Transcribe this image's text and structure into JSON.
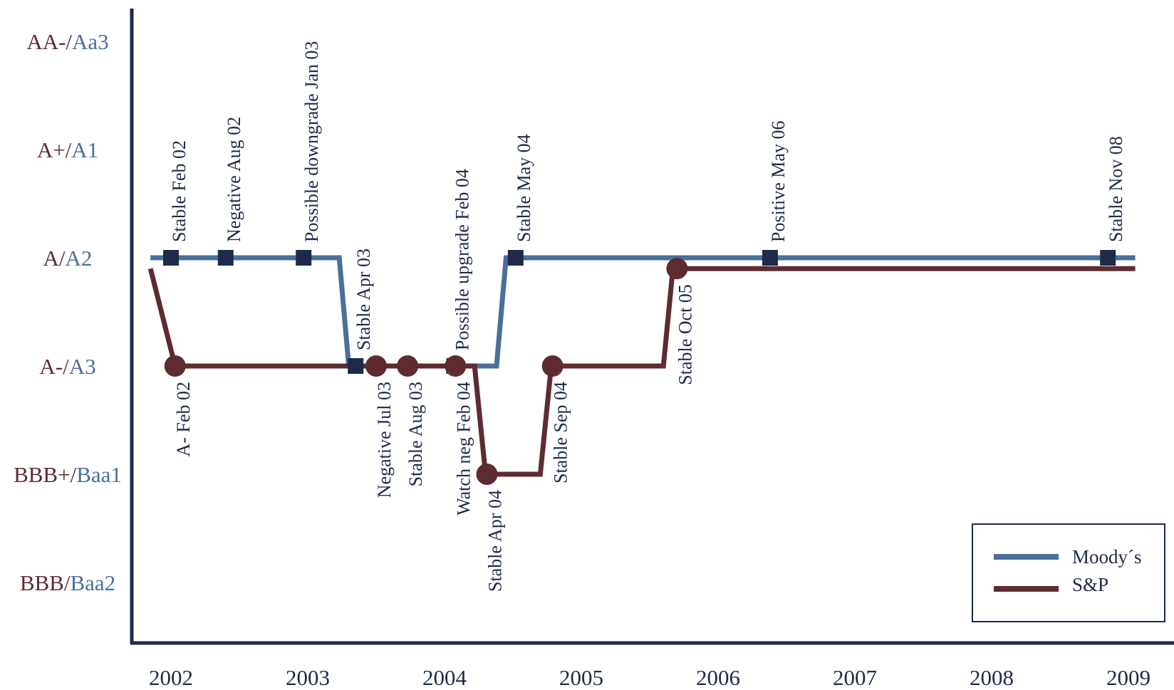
{
  "chart_data": {
    "type": "line",
    "title": "",
    "xlabel": "",
    "ylabel": "",
    "x_ticks": [
      "2002",
      "2003",
      "2004",
      "2005",
      "2006",
      "2007",
      "2008",
      "2009"
    ],
    "y_levels": [
      {
        "sp": "AA-/",
        "moodys": "Aa3"
      },
      {
        "sp": "A+/",
        "moodys": "A1"
      },
      {
        "sp": "A/",
        "moodys": "A2"
      },
      {
        "sp": "A-/",
        "moodys": "A3"
      },
      {
        "sp": "BBB+/",
        "moodys": "Baa1"
      },
      {
        "sp": "BBB/",
        "moodys": "Baa2"
      }
    ],
    "grid": false,
    "legend_position": "bottom-right",
    "series": [
      {
        "name": "Moody´s",
        "color": "#4a6f9c",
        "marker": "square",
        "path": [
          [
            2001.85,
            2
          ],
          [
            2003.23,
            2
          ],
          [
            2003.3,
            3
          ],
          [
            2004.38,
            3
          ],
          [
            2004.45,
            2
          ],
          [
            2009.05,
            2
          ]
        ],
        "events": [
          {
            "x": 2002.0,
            "level": 2,
            "label": "Stable Feb 02"
          },
          {
            "x": 2002.4,
            "level": 2,
            "label": "Negative Aug 02"
          },
          {
            "x": 2002.97,
            "level": 2,
            "label": "Possible downgrade Jan 03"
          },
          {
            "x": 2003.35,
            "level": 3,
            "label": "Stable Apr 03"
          },
          {
            "x": 2004.07,
            "level": 3,
            "label": "Possible upgrade Feb 04"
          },
          {
            "x": 2004.52,
            "level": 2,
            "label": "Stable May 04"
          },
          {
            "x": 2006.38,
            "level": 2,
            "label": "Positive May 06"
          },
          {
            "x": 2008.85,
            "level": 2,
            "label": "Stable Nov 08"
          }
        ]
      },
      {
        "name": "S&P",
        "color": "#5e2b33",
        "marker": "circle",
        "path": [
          [
            2001.85,
            2.1
          ],
          [
            2002.03,
            3
          ],
          [
            2004.22,
            3
          ],
          [
            2004.3,
            4
          ],
          [
            2004.7,
            4
          ],
          [
            2004.78,
            3
          ],
          [
            2005.6,
            3
          ],
          [
            2005.67,
            2.1
          ],
          [
            2009.05,
            2.1
          ]
        ],
        "events": [
          {
            "x": 2002.03,
            "level": 3,
            "label": "A- Feb 02"
          },
          {
            "x": 2003.5,
            "level": 3,
            "label": "Negative Jul 03"
          },
          {
            "x": 2003.73,
            "level": 3,
            "label": "Stable Aug 03"
          },
          {
            "x": 2004.08,
            "level": 3,
            "label": "Watch neg Feb 04"
          },
          {
            "x": 2004.31,
            "level": 4,
            "label": "Stable Apr 04"
          },
          {
            "x": 2004.79,
            "level": 3,
            "label": "Stable Sep 04"
          },
          {
            "x": 2005.7,
            "level": 2.1,
            "label": "Stable Oct 05"
          }
        ]
      }
    ]
  }
}
